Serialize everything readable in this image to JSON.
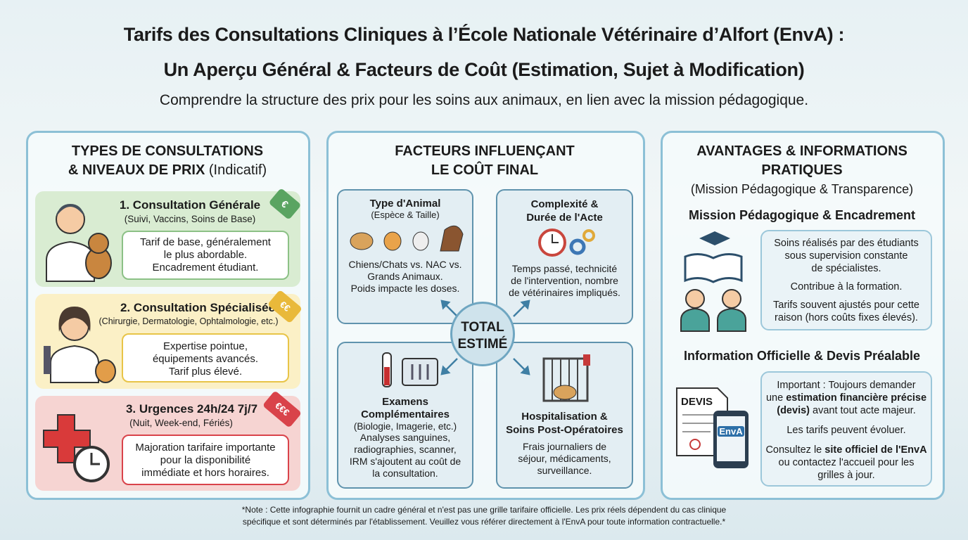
{
  "header": {
    "title_line1": "Tarifs des Consultations Cliniques à l’École Nationale Vétérinaire d’Alfort (EnvA) :",
    "title_line2": "Un Aperçu Général & Facteurs de Coût (Estimation, Sujet à Modification)",
    "subtitle": "Comprendre la structure des prix pour les soins aux animaux, en lien avec la mission pédagogique."
  },
  "left": {
    "title_line1": "TYPES DE CONSULTATIONS",
    "title_line2": "& NIVEAUX DE PRIX",
    "title_note": "(Indicatif)",
    "cards": [
      {
        "title": "1. Consultation Générale",
        "subtitle": "(Suivi, Vaccins, Soins de Base)",
        "tag": "€",
        "lines": [
          "Tarif de base, généralement",
          "le plus abordable.",
          "Encadrement étudiant."
        ]
      },
      {
        "title": "2. Consultation Spécialisée",
        "subtitle": "(Chirurgie, Dermatologie, Ophtalmologie, etc.)",
        "tag": "€€",
        "lines": [
          "Expertise pointue,",
          "équipements avancés.",
          "Tarif plus élevé."
        ]
      },
      {
        "title": "3. Urgences 24h/24 7j/7",
        "subtitle": "(Nuit, Week-end, Fériés)",
        "tag": "€€€",
        "lines": [
          "Majoration tarifaire importante",
          "pour la disponibilité",
          "immédiate et hors horaires."
        ]
      }
    ]
  },
  "center": {
    "title_line1": "FACTEURS INFLUENÇANT",
    "title_line2": "LE COÛT FINAL",
    "hub_line1": "TOTAL",
    "hub_line2": "ESTIMÉ",
    "factors": [
      {
        "title": [
          "Type d'Animal"
        ],
        "subtitle": "(Espèce & Taille)",
        "lines": [
          "Chiens/Chats vs. NAC vs.",
          "Grands Animaux.",
          "Poids impacte les doses."
        ]
      },
      {
        "title": [
          "Complexité &",
          "Durée de l'Acte"
        ],
        "lines": [
          "Temps passé, technicité",
          "de l'intervention, nombre",
          "de vétérinaires impliqués."
        ]
      },
      {
        "title": [
          "Examens",
          "Complémentaires"
        ],
        "subtitle": "(Biologie, Imagerie, etc.)",
        "lines": [
          "Analyses sanguines,",
          "radiographies, scanner,",
          "IRM s'ajoutent au coût de",
          "la consultation."
        ]
      },
      {
        "title": [
          "Hospitalisation &",
          "Soins Post-Opératoires"
        ],
        "lines": [
          "Frais journaliers de",
          "séjour, médicaments,",
          "surveillance."
        ]
      }
    ]
  },
  "right": {
    "title_line1": "AVANTAGES & INFORMATIONS",
    "title_line2": "PRATIQUES",
    "title_note": "(Mission Pédagogique & Transparence)",
    "mission": {
      "heading": "Mission Pédagogique & Encadrement",
      "paragraphs": [
        [
          "Soins réalisés par des étudiants",
          "sous supervision constante",
          "de spécialistes."
        ],
        [
          "Contribue à la formation."
        ],
        [
          "Tarifs souvent ajustés pour cette",
          "raison (hors coûts fixes élevés)."
        ]
      ]
    },
    "info": {
      "heading": "Information Officielle & Devis Préalable",
      "icon_doc": "DEVIS",
      "icon_phone": "EnvA",
      "p1": [
        "Important : Toujours demander",
        "une ",
        "estimation financière précise",
        "(devis)",
        " avant tout acte majeur."
      ],
      "p2": "Les tarifs peuvent évoluer.",
      "p3": [
        "Consultez le ",
        "site officiel de l'EnvA",
        "ou contactez l'accueil pour les",
        "grilles à jour."
      ]
    }
  },
  "footer": {
    "line1": "*Note : Cette infographie fournit un cadre général et n'est pas une grille tarifaire officielle. Les prix réels dépendent du cas clinique",
    "line2": "spécifique et sont déterminés par l'établissement. Veuillez vous référer directement à l'EnvA pour toute information contractuelle.*"
  }
}
